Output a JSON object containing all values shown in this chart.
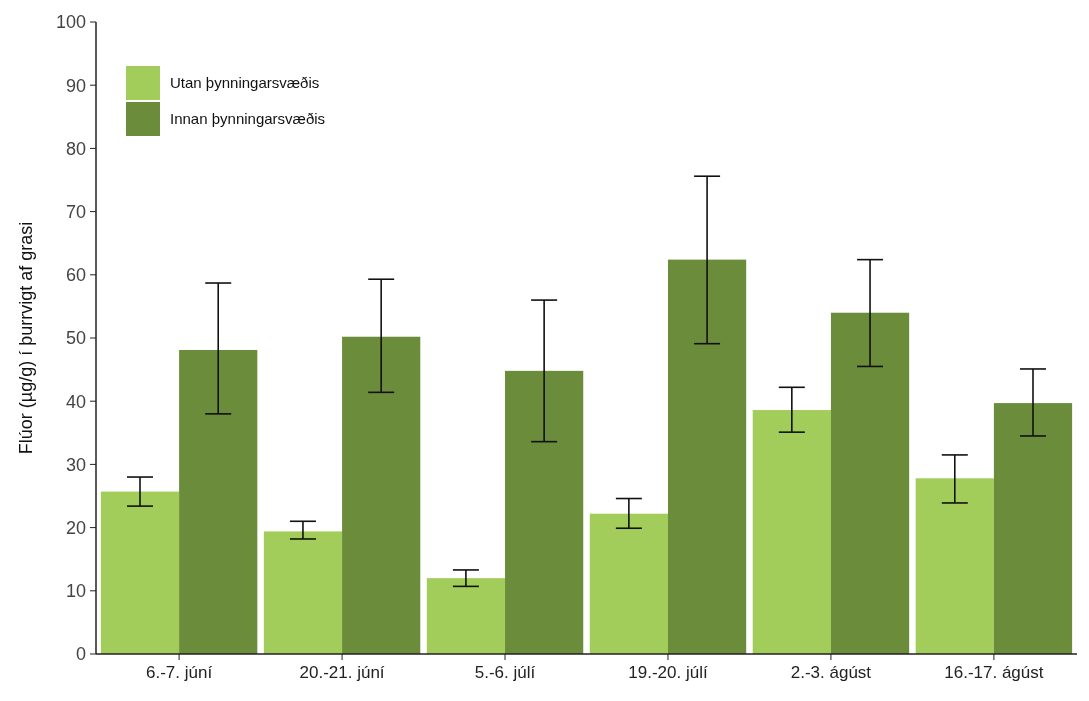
{
  "chart_data": {
    "type": "bar",
    "ylabel": "Flúor (µg/g) í þurrvigt af grasi",
    "categories": [
      "6.-7. júní",
      "20.-21. júní",
      "5.-6. júlí",
      "19.-20. júlí",
      "2.-3. ágúst",
      "16.-17. ágúst"
    ],
    "series": [
      {
        "name": "Utan þynningarsvæðis",
        "color": "#a2cd5a",
        "values": [
          25.7,
          19.4,
          12,
          22.2,
          38.6,
          27.8
        ],
        "errors": [
          [
            23.4,
            28
          ],
          [
            18.2,
            21
          ],
          [
            10.7,
            13.3
          ],
          [
            19.9,
            24.6
          ],
          [
            35.1,
            42.2
          ],
          [
            23.9,
            31.5
          ]
        ]
      },
      {
        "name": "Innan þynningarsvæðis",
        "color": "#6b8c3a",
        "values": [
          48.1,
          50.2,
          44.8,
          62.4,
          54,
          39.7
        ],
        "errors": [
          [
            38,
            58.7
          ],
          [
            41.4,
            59.3
          ],
          [
            33.6,
            56
          ],
          [
            49.1,
            75.6
          ],
          [
            45.5,
            62.4
          ],
          [
            34.5,
            45.1
          ]
        ]
      }
    ],
    "ylim": [
      0,
      100
    ],
    "yticks": [
      0,
      10,
      20,
      30,
      40,
      50,
      60,
      70,
      80,
      90,
      100
    ],
    "legend": "top left",
    "grid": false
  }
}
